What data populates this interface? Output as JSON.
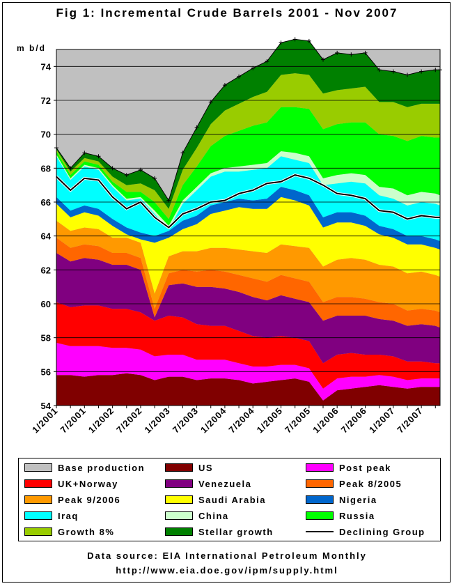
{
  "chart_data": {
    "type": "area",
    "title": "Fig 1: Incremental Crude Barrels 2001 - Nov 2007",
    "ylabel": "m b/d",
    "ylim": [
      54,
      75
    ],
    "yticks": [
      54,
      56,
      58,
      60,
      62,
      64,
      66,
      68,
      70,
      72,
      74
    ],
    "grid": true,
    "legend_position": "bottom",
    "xticks": [
      "1/2001",
      "7/2001",
      "1/2002",
      "7/2002",
      "1/2003",
      "7/2003",
      "1/2004",
      "7/2004",
      "1/2005",
      "7/2005",
      "1/2006",
      "7/2006",
      "1/2007",
      "7/2007"
    ],
    "x_months_from_jan2001": [
      0,
      3,
      6,
      9,
      12,
      15,
      18,
      21,
      24,
      27,
      30,
      33,
      36,
      39,
      42,
      45,
      48,
      51,
      54,
      57,
      60,
      63,
      66,
      69,
      72,
      75,
      78,
      81,
      82
    ],
    "stack_order_bottom_to_top": [
      "US",
      "Post peak",
      "UK+Norway",
      "Venezuela",
      "Peak 8/2005",
      "Peak 9/2006",
      "Saudi Arabia",
      "Nigeria",
      "Iraq",
      "China",
      "Russia",
      "Growth 8%",
      "Stellar growth"
    ],
    "series": [
      {
        "name": "Base production",
        "color": "#C0C0C0",
        "role": "background"
      },
      {
        "name": "US",
        "color": "#800000",
        "values": [
          55.8,
          55.8,
          55.7,
          55.8,
          55.8,
          55.9,
          55.8,
          55.5,
          55.7,
          55.7,
          55.5,
          55.6,
          55.6,
          55.5,
          55.3,
          55.4,
          55.5,
          55.6,
          55.4,
          54.3,
          54.9,
          55.0,
          55.1,
          55.2,
          55.1,
          55.0,
          55.1,
          55.1,
          55.1
        ]
      },
      {
        "name": "Post peak",
        "color": "#FF00FF",
        "values": [
          1.9,
          1.7,
          1.8,
          1.7,
          1.6,
          1.5,
          1.5,
          1.4,
          1.3,
          1.3,
          1.2,
          1.1,
          1.1,
          1.0,
          1.0,
          0.9,
          0.9,
          0.8,
          0.8,
          0.7,
          0.7,
          0.7,
          0.6,
          0.6,
          0.6,
          0.5,
          0.5,
          0.5,
          0.5
        ]
      },
      {
        "name": "UK+Norway",
        "color": "#FF0000",
        "values": [
          2.4,
          2.3,
          2.4,
          2.4,
          2.3,
          2.3,
          2.2,
          2.1,
          2.3,
          2.2,
          2.1,
          2.0,
          2.0,
          1.9,
          1.8,
          1.7,
          1.7,
          1.6,
          1.6,
          1.5,
          1.4,
          1.4,
          1.3,
          1.2,
          1.2,
          1.1,
          1.0,
          0.9,
          0.9
        ]
      },
      {
        "name": "Venezuela",
        "color": "#800080",
        "values": [
          2.9,
          2.7,
          2.8,
          2.7,
          2.6,
          2.6,
          2.5,
          0.2,
          1.8,
          2.0,
          2.2,
          2.3,
          2.2,
          2.3,
          2.3,
          2.2,
          2.4,
          2.3,
          2.3,
          2.5,
          2.3,
          2.2,
          2.3,
          2.1,
          2.1,
          2.1,
          2.2,
          2.2,
          2.1
        ]
      },
      {
        "name": "Peak 8/2005",
        "color": "#FF6600",
        "values": [
          0.9,
          0.8,
          0.8,
          0.8,
          0.7,
          0.7,
          0.7,
          0.5,
          0.7,
          0.8,
          0.9,
          1.0,
          1.0,
          1.0,
          1.1,
          1.1,
          1.2,
          1.2,
          1.2,
          1.1,
          1.1,
          1.1,
          1.0,
          1.0,
          1.0,
          0.9,
          0.9,
          0.9,
          0.9
        ]
      },
      {
        "name": "Peak 9/2006",
        "color": "#FF9900",
        "values": [
          1.0,
          1.0,
          1.0,
          1.0,
          0.9,
          0.9,
          0.9,
          0.9,
          1.0,
          1.1,
          1.2,
          1.3,
          1.4,
          1.5,
          1.6,
          1.7,
          1.8,
          1.9,
          2.0,
          2.1,
          2.2,
          2.3,
          2.3,
          2.2,
          2.2,
          2.2,
          2.2,
          2.1,
          2.1
        ]
      },
      {
        "name": "Saudi Arabia",
        "color": "#FFFF00",
        "values": [
          1.0,
          0.8,
          0.9,
          0.8,
          0.7,
          0.2,
          0.2,
          3.0,
          1.1,
          1.3,
          1.6,
          2.0,
          2.2,
          2.5,
          2.5,
          2.6,
          2.8,
          2.7,
          2.5,
          2.3,
          2.2,
          2.1,
          2.0,
          1.8,
          1.7,
          1.7,
          1.6,
          1.6,
          1.6
        ]
      },
      {
        "name": "Nigeria",
        "color": "#0066CC",
        "values": [
          0.4,
          0.4,
          0.4,
          0.4,
          0.4,
          0.4,
          0.4,
          0.4,
          0.4,
          0.5,
          0.5,
          0.5,
          0.5,
          0.5,
          0.5,
          0.6,
          0.6,
          0.6,
          0.6,
          0.6,
          0.6,
          0.6,
          0.6,
          0.5,
          0.5,
          0.5,
          0.5,
          0.5,
          0.5
        ]
      },
      {
        "name": "Iraq",
        "color": "#00FFFF",
        "values": [
          2.4,
          1.8,
          2.3,
          2.3,
          1.9,
          1.6,
          2.0,
          1.3,
          0.1,
          1.0,
          1.5,
          1.7,
          1.8,
          1.6,
          1.8,
          1.8,
          1.8,
          1.8,
          1.9,
          1.9,
          1.7,
          1.8,
          1.9,
          1.8,
          1.8,
          1.8,
          2.0,
          2.1,
          2.1
        ]
      },
      {
        "name": "China",
        "color": "#CCFFCC",
        "values": [
          0.1,
          0.1,
          0.1,
          0.1,
          0.1,
          0.1,
          0.1,
          0.2,
          0.2,
          0.2,
          0.2,
          0.2,
          0.2,
          0.3,
          0.3,
          0.3,
          0.3,
          0.4,
          0.4,
          0.4,
          0.5,
          0.5,
          0.5,
          0.5,
          0.6,
          0.6,
          0.6,
          0.6,
          0.6
        ]
      },
      {
        "name": "Russia",
        "color": "#00FF00",
        "values": [
          0.2,
          0.2,
          0.2,
          0.2,
          0.2,
          0.4,
          0.3,
          0.5,
          0.4,
          0.9,
          1.2,
          1.6,
          1.9,
          2.1,
          2.3,
          2.4,
          2.6,
          2.7,
          2.8,
          2.9,
          3.0,
          3.0,
          3.1,
          3.1,
          3.1,
          3.2,
          3.3,
          3.3,
          3.4
        ]
      },
      {
        "name": "Growth 8%",
        "color": "#99CC00",
        "values": [
          0.1,
          0.2,
          0.2,
          0.2,
          0.3,
          0.4,
          0.5,
          0.7,
          0.6,
          0.9,
          1.1,
          1.3,
          1.5,
          1.6,
          1.7,
          1.8,
          1.9,
          2.0,
          2.0,
          2.1,
          2.0,
          2.0,
          2.1,
          1.9,
          2.0,
          2.0,
          1.9,
          2.0,
          2.0
        ]
      },
      {
        "name": "Stellar growth",
        "color": "#008000",
        "values": [
          0.1,
          0.2,
          0.3,
          0.3,
          0.5,
          0.6,
          0.8,
          0.7,
          0.5,
          1.0,
          1.2,
          1.3,
          1.5,
          1.6,
          1.7,
          1.8,
          1.9,
          2.0,
          2.0,
          2.0,
          2.2,
          2.0,
          2.0,
          1.9,
          1.8,
          1.9,
          1.9,
          2.0,
          2.0
        ]
      },
      {
        "name": "Declining Group",
        "color": "#000000",
        "role": "line",
        "values": [
          67.5,
          66.7,
          67.4,
          67.3,
          66.3,
          65.6,
          66.0,
          65.1,
          64.5,
          65.3,
          65.6,
          66.0,
          66.1,
          66.5,
          66.7,
          67.1,
          67.2,
          67.6,
          67.4,
          67.0,
          66.5,
          66.4,
          66.2,
          65.5,
          65.4,
          65.0,
          65.2,
          65.1,
          65.1
        ]
      }
    ],
    "legend": [
      [
        "Base production",
        "US",
        "Post peak"
      ],
      [
        "UK+Norway",
        "Venezuela",
        "Peak 8/2005"
      ],
      [
        "Peak 9/2006",
        "Saudi Arabia",
        "Nigeria"
      ],
      [
        "Iraq",
        "China",
        "Russia"
      ],
      [
        "Growth 8%",
        "Stellar growth",
        "Declining Group"
      ]
    ],
    "source": "Data source: EIA International Petroleum Monthly",
    "url": "http://www.eia.doe.gov/ipm/supply.html"
  }
}
